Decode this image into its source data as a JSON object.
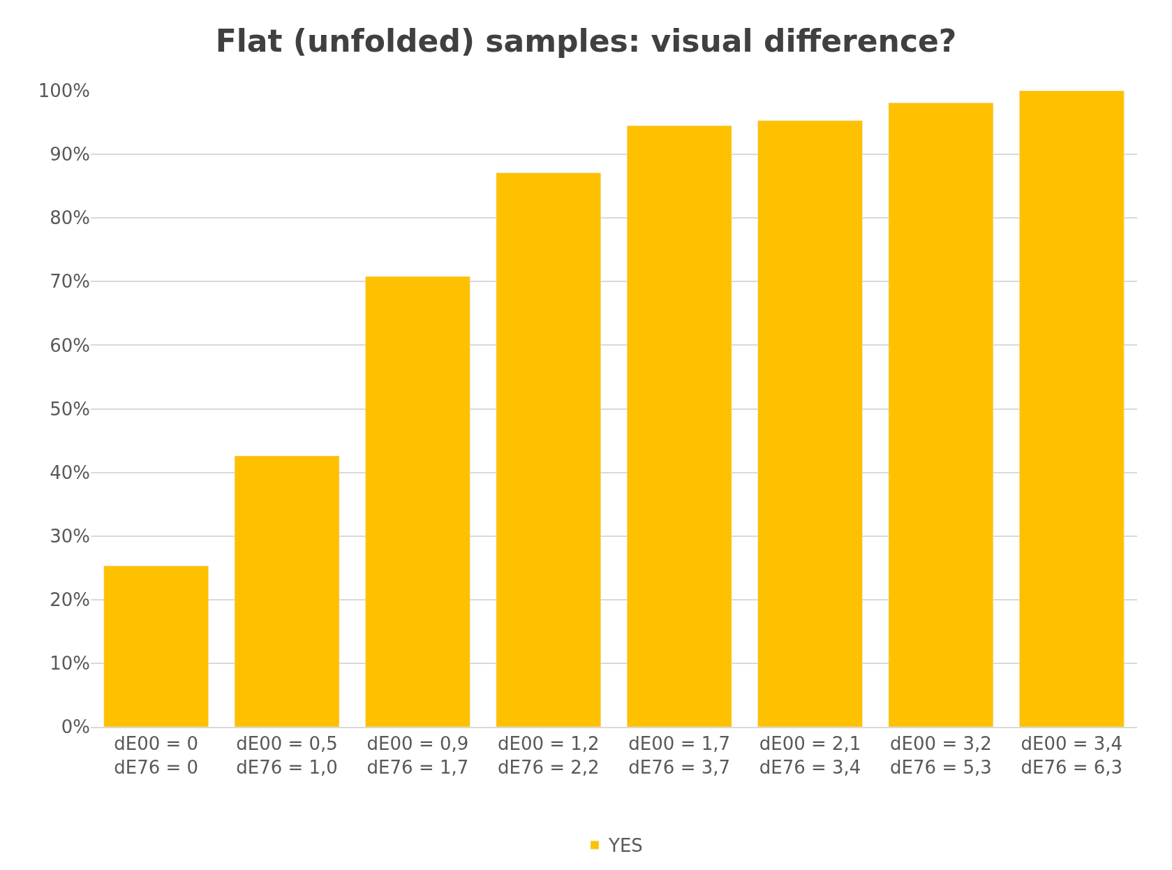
{
  "chart_data": {
    "type": "bar",
    "title": "Flat (unfolded) samples: visual difference?",
    "categories": [
      "dE00 = 0\ndE76 = 0",
      "dE00 = 0,5\ndE76 = 1,0",
      "dE00 = 0,9\ndE76 = 1,7",
      "dE00 = 1,2\ndE76 = 2,2",
      "dE00 = 1,7\ndE76 = 3,7",
      "dE00 = 2,1\ndE76 = 3,4",
      "dE00 = 3,2\ndE76 = 5,3",
      "dE00 = 3,4\ndE76 = 6,3"
    ],
    "series": [
      {
        "name": "YES",
        "color": "#ffc000",
        "values": [
          25.3,
          42.6,
          70.8,
          87.1,
          94.5,
          95.3,
          98.1,
          100
        ]
      }
    ],
    "ylim": [
      0,
      100
    ],
    "yticks": [
      {
        "value": 0,
        "label": "0%"
      },
      {
        "value": 10,
        "label": "10%"
      },
      {
        "value": 20,
        "label": "20%"
      },
      {
        "value": 30,
        "label": "30%"
      },
      {
        "value": 40,
        "label": "40%"
      },
      {
        "value": 50,
        "label": "50%"
      },
      {
        "value": 60,
        "label": "60%"
      },
      {
        "value": 70,
        "label": "70%"
      },
      {
        "value": 80,
        "label": "80%"
      },
      {
        "value": 90,
        "label": "90%"
      },
      {
        "value": 100,
        "label": "100%"
      }
    ],
    "grid": "y",
    "legend": "bottom"
  }
}
